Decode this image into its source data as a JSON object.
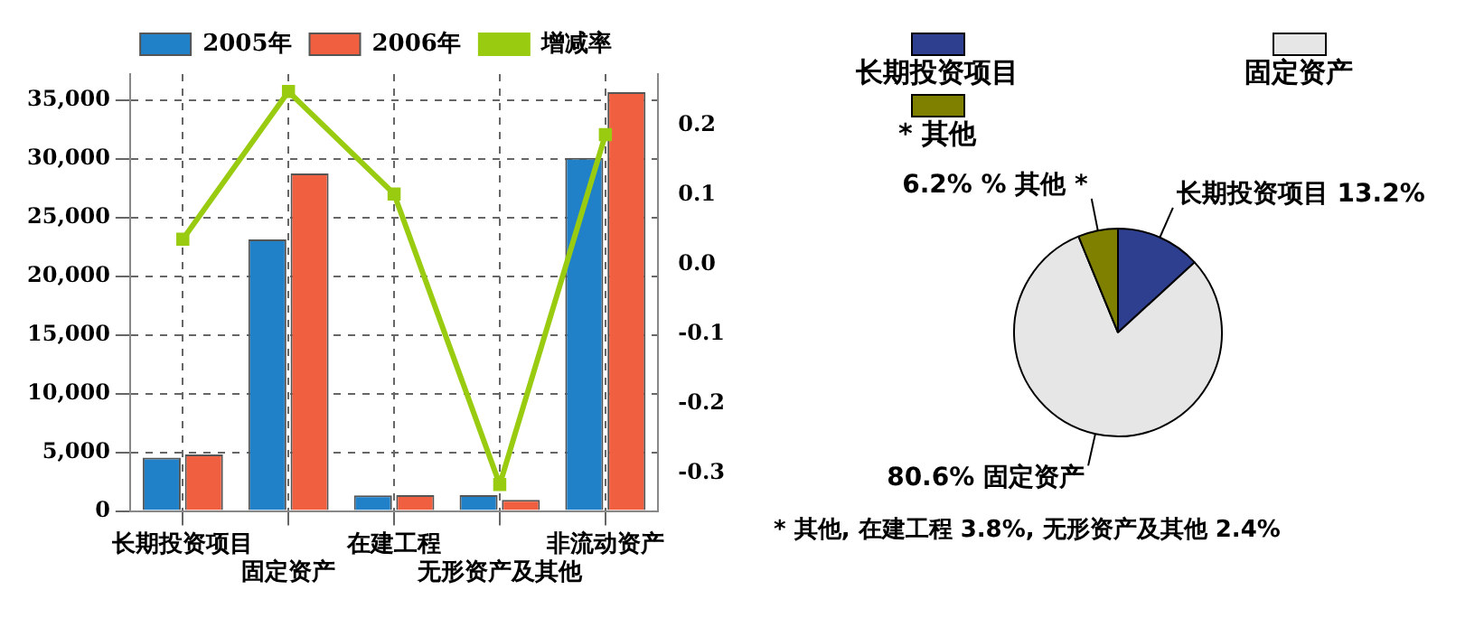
{
  "chart_data": [
    {
      "type": "bar",
      "categories": [
        "长期投资项目",
        "固定资产",
        "在建工程",
        "无形资产及其他",
        "非流动资产"
      ],
      "series": [
        {
          "name": "2005年",
          "color": "#2080c8",
          "values": [
            4550,
            23150,
            1330,
            1350,
            30100
          ]
        },
        {
          "name": "2006年",
          "color": "#f06040",
          "values": [
            4820,
            28780,
            1350,
            960,
            35700
          ]
        },
        {
          "name": "增减率",
          "type": "line",
          "axis": "y2",
          "color": "#99cc11",
          "values": [
            0.036,
            0.248,
            0.101,
            -0.316,
            0.186
          ]
        }
      ],
      "ylim": [
        0,
        37250
      ],
      "yticks": [
        {
          "value": 0,
          "label": "0"
        },
        {
          "value": 5000,
          "label": "5,000"
        },
        {
          "value": 10000,
          "label": "10,000"
        },
        {
          "value": 15000,
          "label": "15,000"
        },
        {
          "value": 20000,
          "label": "20,000"
        },
        {
          "value": 25000,
          "label": "25,000"
        },
        {
          "value": 30000,
          "label": "30,000"
        },
        {
          "value": 35000,
          "label": "35,000"
        }
      ],
      "y2lim": [
        -0.354,
        0.273
      ],
      "y2ticks": [
        -0.3,
        -0.2,
        -0.1,
        {
          "value": 0,
          "label": "0.0"
        },
        0.1,
        0.2
      ],
      "grid": true,
      "legend": "top",
      "marker": "square"
    },
    {
      "type": "pie",
      "categories": [
        "长期投资项目",
        "固定资产",
        "* 其他"
      ],
      "values": [
        13.2,
        80.6,
        6.2
      ],
      "colors": [
        "#2e3f8f",
        "#e6e6e6",
        "#808000"
      ],
      "value_labels": [
        "长期投资项目 13.2%",
        "80.6% 固定资产",
        "6.2% % 其他 *"
      ],
      "legend": "top",
      "annotations": [
        "* 其他, 在建工程 3.8%, 无形资产及其他 2.4%"
      ]
    }
  ]
}
